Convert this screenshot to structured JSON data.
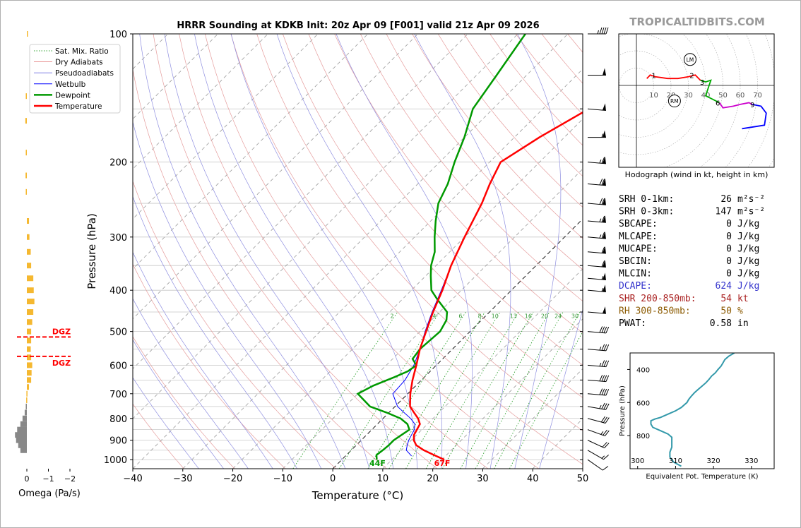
{
  "title": "HRRR Sounding at KDKB Init: 20z Apr 09 [F001] valid 21z Apr 09 2026",
  "watermark": "TROPICALTIDBITS.COM",
  "skewt": {
    "xlabel": "Temperature (°C)",
    "ylabel": "Pressure (hPa)",
    "xlim": [
      -40,
      50
    ],
    "ylim": [
      1050,
      100
    ],
    "xticks": [
      -40,
      -30,
      -20,
      -10,
      0,
      10,
      20,
      30,
      40,
      50
    ],
    "xtick_labels": [
      "−40",
      "−30",
      "−20",
      "−10",
      "0",
      "10",
      "20",
      "30",
      "40",
      "50"
    ],
    "yticks": [
      100,
      200,
      300,
      400,
      500,
      600,
      700,
      800,
      900,
      1000
    ],
    "isobar_lines": [
      100,
      150,
      200,
      250,
      300,
      350,
      400,
      450,
      500,
      550,
      600,
      650,
      700,
      750,
      800,
      850,
      900,
      950,
      1000,
      1050
    ],
    "legend": [
      {
        "name": "Sat. Mix. Ratio",
        "color": "#2ca02c",
        "style": "dotted"
      },
      {
        "name": "Dry Adiabats",
        "color": "#e07070",
        "style": "solid-thin"
      },
      {
        "name": "Pseudoadiabats",
        "color": "#7070e0",
        "style": "solid-thin"
      },
      {
        "name": "Wetbulb",
        "color": "#0000ff",
        "style": "solid"
      },
      {
        "name": "Dewpoint",
        "color": "#009900",
        "style": "solid-thick"
      },
      {
        "name": "Temperature",
        "color": "#ff0000",
        "style": "solid-thick"
      }
    ],
    "mixing_ratio_labels": [
      "2",
      "4",
      "6",
      "8",
      "10",
      "13",
      "16",
      "20",
      "24",
      "30",
      "36"
    ],
    "surface_dewpoint_label": "44F",
    "surface_temp_label": "67F"
  },
  "chart_data": {
    "type": "line",
    "temperature": {
      "p": [
        1000,
        975,
        950,
        925,
        900,
        875,
        850,
        825,
        800,
        775,
        750,
        700,
        650,
        600,
        550,
        500,
        450,
        400,
        350,
        300,
        250,
        225,
        200,
        175,
        150,
        125,
        100
      ],
      "t": [
        20.5,
        17.5,
        14.5,
        12.0,
        10.5,
        9.5,
        9.0,
        8.5,
        7.0,
        5.0,
        3.0,
        0.5,
        -1.8,
        -4.0,
        -6.5,
        -8.8,
        -11.3,
        -13.8,
        -17.0,
        -20.0,
        -23.3,
        -25.6,
        -27.8,
        -25.0,
        -20.8,
        -18.5,
        -17.0
      ]
    },
    "dewpoint": {
      "p": [
        1000,
        975,
        950,
        925,
        900,
        875,
        850,
        825,
        800,
        775,
        750,
        700,
        670,
        640,
        620,
        600,
        580,
        550,
        500,
        470,
        450,
        420,
        400,
        370,
        350,
        325,
        300,
        275,
        250,
        225,
        200,
        175,
        150,
        125,
        100
      ],
      "d": [
        7.0,
        6.0,
        6.3,
        6.5,
        6.5,
        7.0,
        7.5,
        6.0,
        3.5,
        -0.5,
        -5.0,
        -10.0,
        -8.5,
        -6.0,
        -4.5,
        -4.0,
        -6.0,
        -6.5,
        -6.0,
        -7.0,
        -8.5,
        -13.0,
        -16.0,
        -19.0,
        -21.0,
        -23.0,
        -26.0,
        -29.0,
        -32.0,
        -34.0,
        -37.0,
        -40.0,
        -44.0,
        -46.0,
        -48.5
      ]
    },
    "wetbulb": {
      "p": [
        980,
        950,
        925,
        900,
        875,
        850,
        825,
        800,
        775,
        750,
        700,
        650,
        600,
        550,
        500,
        450,
        400,
        350,
        300,
        250,
        225,
        200,
        175,
        150,
        125,
        100
      ],
      "w": [
        13.2,
        11.0,
        10.2,
        9.5,
        9.0,
        8.5,
        7.5,
        5.5,
        3.0,
        0.5,
        -3.0,
        -3.3,
        -4.5,
        -6.5,
        -9.0,
        -11.5,
        -14.0,
        -17.0,
        -20.0,
        -23.3,
        -25.6,
        -27.8,
        -25.0,
        -20.8,
        -18.8,
        -17.0
      ]
    }
  },
  "wind_barbs": [
    {
      "p": 100,
      "dir": 270,
      "spd": 45
    },
    {
      "p": 125,
      "dir": 270,
      "spd": 50
    },
    {
      "p": 150,
      "dir": 265,
      "spd": 50
    },
    {
      "p": 175,
      "dir": 270,
      "spd": 55
    },
    {
      "p": 200,
      "dir": 265,
      "spd": 65
    },
    {
      "p": 225,
      "dir": 265,
      "spd": 70
    },
    {
      "p": 250,
      "dir": 265,
      "spd": 70
    },
    {
      "p": 275,
      "dir": 265,
      "spd": 65
    },
    {
      "p": 300,
      "dir": 265,
      "spd": 65
    },
    {
      "p": 325,
      "dir": 265,
      "spd": 60
    },
    {
      "p": 350,
      "dir": 265,
      "spd": 60
    },
    {
      "p": 375,
      "dir": 265,
      "spd": 55
    },
    {
      "p": 400,
      "dir": 265,
      "spd": 55
    },
    {
      "p": 450,
      "dir": 265,
      "spd": 50
    },
    {
      "p": 500,
      "dir": 265,
      "spd": 40
    },
    {
      "p": 550,
      "dir": 265,
      "spd": 35
    },
    {
      "p": 600,
      "dir": 265,
      "spd": 35
    },
    {
      "p": 650,
      "dir": 265,
      "spd": 40
    },
    {
      "p": 700,
      "dir": 265,
      "spd": 40
    },
    {
      "p": 750,
      "dir": 260,
      "spd": 35
    },
    {
      "p": 800,
      "dir": 255,
      "spd": 30
    },
    {
      "p": 850,
      "dir": 250,
      "spd": 25
    },
    {
      "p": 900,
      "dir": 245,
      "spd": 20
    },
    {
      "p": 950,
      "dir": 240,
      "spd": 15
    },
    {
      "p": 1000,
      "dir": 235,
      "spd": 10
    }
  ],
  "omega": {
    "xlabel": "Omega (Pa/s)",
    "xticks": [
      0,
      -1,
      -2
    ],
    "xtick_labels": [
      "0",
      "−1",
      "−2"
    ],
    "dgz_label": "DGZ",
    "dgz_pressures": [
      515,
      572
    ],
    "bars": [
      {
        "p": 100,
        "v": -0.05
      },
      {
        "p": 140,
        "v": 0.05
      },
      {
        "p": 160,
        "v": 0.07
      },
      {
        "p": 190,
        "v": 0.05
      },
      {
        "p": 215,
        "v": 0.06
      },
      {
        "p": 235,
        "v": 0.05
      },
      {
        "p": 275,
        "v": -0.1
      },
      {
        "p": 300,
        "v": -0.12
      },
      {
        "p": 325,
        "v": -0.18
      },
      {
        "p": 350,
        "v": -0.2
      },
      {
        "p": 375,
        "v": -0.3
      },
      {
        "p": 400,
        "v": -0.32
      },
      {
        "p": 425,
        "v": -0.35
      },
      {
        "p": 450,
        "v": -0.3
      },
      {
        "p": 475,
        "v": -0.25
      },
      {
        "p": 500,
        "v": -0.2
      },
      {
        "p": 525,
        "v": -0.2
      },
      {
        "p": 550,
        "v": -0.18
      },
      {
        "p": 575,
        "v": -0.2
      },
      {
        "p": 600,
        "v": -0.25
      },
      {
        "p": 625,
        "v": -0.22
      },
      {
        "p": 650,
        "v": -0.2
      },
      {
        "p": 675,
        "v": -0.1
      },
      {
        "p": 700,
        "v": 0.02
      },
      {
        "p": 725,
        "v": 0.03
      },
      {
        "p": 750,
        "v": 0.05
      },
      {
        "p": 775,
        "v": 0.1
      },
      {
        "p": 800,
        "v": 0.2
      },
      {
        "p": 825,
        "v": 0.3
      },
      {
        "p": 850,
        "v": 0.45
      },
      {
        "p": 875,
        "v": 0.55
      },
      {
        "p": 900,
        "v": 0.5
      },
      {
        "p": 925,
        "v": 0.4
      },
      {
        "p": 950,
        "v": 0.3
      }
    ]
  },
  "hodograph": {
    "caption": "Hodograph (wind in kt, height in km)",
    "ring_labels": [
      "10",
      "20",
      "30",
      "40",
      "50",
      "60",
      "70"
    ],
    "lm_label": "LM",
    "rm_label": "RM",
    "lm": [
      31,
      15
    ],
    "rm": [
      22,
      -9
    ],
    "height_labels": [
      {
        "t": "1",
        "x": 10,
        "y": 6
      },
      {
        "t": "2",
        "x": 32,
        "y": 6
      },
      {
        "t": "3",
        "x": 38,
        "y": 2
      },
      {
        "t": "6",
        "x": 47,
        "y": -10
      },
      {
        "t": "9",
        "x": 67,
        "y": -11
      }
    ],
    "segments": [
      {
        "color": "#ff0000",
        "pts": [
          [
            6,
            4
          ],
          [
            8,
            6
          ],
          [
            11,
            5
          ],
          [
            18,
            4
          ],
          [
            24,
            4
          ],
          [
            30,
            5
          ],
          [
            34,
            6
          ],
          [
            37,
            3
          ]
        ]
      },
      {
        "color": "#00aa00",
        "pts": [
          [
            37,
            3
          ],
          [
            40,
            2
          ],
          [
            43,
            3
          ],
          [
            42,
            0
          ],
          [
            40,
            -6
          ],
          [
            44,
            -8
          ],
          [
            48,
            -10
          ]
        ]
      },
      {
        "color": "#cc00cc",
        "pts": [
          [
            48,
            -10
          ],
          [
            50,
            -13
          ],
          [
            56,
            -12
          ],
          [
            60,
            -11
          ],
          [
            65,
            -10
          ],
          [
            67,
            -11
          ]
        ]
      },
      {
        "color": "#0000ff",
        "pts": [
          [
            67,
            -11
          ],
          [
            72,
            -12
          ],
          [
            75,
            -16
          ],
          [
            74,
            -23
          ],
          [
            61,
            -25
          ]
        ]
      }
    ]
  },
  "indices": [
    {
      "label": "SRH 0-1km:",
      "value": "26",
      "unit": "m²s⁻²",
      "color": "#000000"
    },
    {
      "label": "SRH 0-3km:",
      "value": "147",
      "unit": "m²s⁻²",
      "color": "#000000"
    },
    {
      "label": "SBCAPE:",
      "value": "0",
      "unit": "J/kg",
      "color": "#000000"
    },
    {
      "label": "MLCAPE:",
      "value": "0",
      "unit": "J/kg",
      "color": "#000000"
    },
    {
      "label": "MUCAPE:",
      "value": "0",
      "unit": "J/kg",
      "color": "#000000"
    },
    {
      "label": "SBCIN:",
      "value": "0",
      "unit": "J/kg",
      "color": "#000000"
    },
    {
      "label": "MLCIN:",
      "value": "0",
      "unit": "J/kg",
      "color": "#000000"
    },
    {
      "label": "DCAPE:",
      "value": "624",
      "unit": "J/kg",
      "color": "#3333cc"
    },
    {
      "label": "SHR 200-850mb:",
      "value": "54",
      "unit": "kt",
      "color": "#aa2222"
    },
    {
      "label": "RH 300-850mb:",
      "value": "50",
      "unit": "%",
      "color": "#8b5a00"
    },
    {
      "label": "PWAT:",
      "value": "0.58",
      "unit": "in",
      "color": "#000000"
    }
  ],
  "theta_e": {
    "xlabel": "Equivalent Pot. Temperature (K)",
    "ylabel": "Pressure (hPa)",
    "xticks": [
      300,
      310,
      320,
      330
    ],
    "yticks": [
      400,
      600,
      800
    ],
    "xlim": [
      298,
      336
    ],
    "ylim": [
      1000,
      300
    ],
    "color": "#3399aa",
    "p": [
      985,
      960,
      930,
      900,
      870,
      840,
      810,
      790,
      770,
      750,
      730,
      710,
      700,
      690,
      670,
      650,
      630,
      610,
      600,
      580,
      560,
      540,
      520,
      500,
      480,
      460,
      440,
      420,
      400,
      380,
      360,
      340,
      320,
      300
    ],
    "theta": [
      311.5,
      309.5,
      308.5,
      308.5,
      309.0,
      309.0,
      309.0,
      308.0,
      306.0,
      304.0,
      303.5,
      303.5,
      304.5,
      306.0,
      308.0,
      310.0,
      311.5,
      312.5,
      313.0,
      313.5,
      314.2,
      315.0,
      316.0,
      317.0,
      318.0,
      318.8,
      319.5,
      320.5,
      321.2,
      322.0,
      322.5,
      323.0,
      324.0,
      325.5
    ]
  }
}
